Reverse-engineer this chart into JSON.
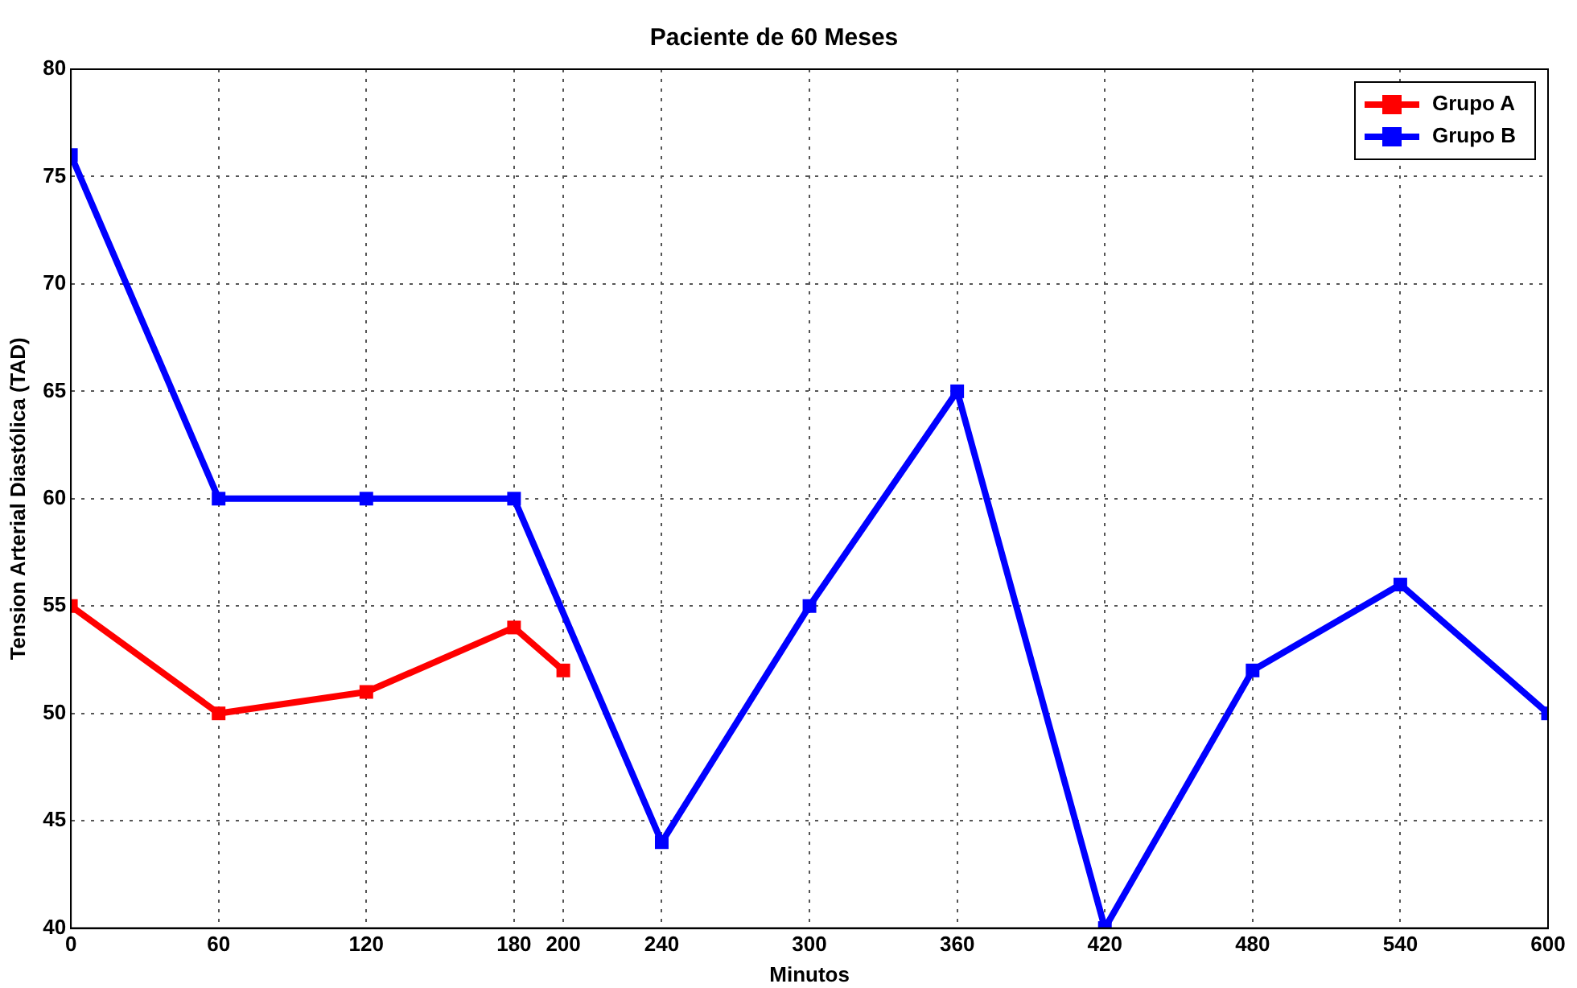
{
  "chart_data": {
    "type": "line",
    "title": "Paciente de 60 Meses",
    "xlabel": "Minutos",
    "ylabel": "Tension Arterial Diastólica (TAD)",
    "series": [
      {
        "name": "Grupo A",
        "color": "#ff0000",
        "x": [
          0,
          60,
          120,
          180,
          200
        ],
        "values": [
          55,
          50,
          51,
          54,
          52
        ]
      },
      {
        "name": "Grupo B",
        "color": "#0000ff",
        "x": [
          0,
          60,
          120,
          180,
          240,
          300,
          360,
          420,
          480,
          540,
          600
        ],
        "values": [
          76,
          60,
          60,
          60,
          44,
          55,
          65,
          40,
          52,
          56,
          50
        ]
      }
    ],
    "xlim": [
      0,
      600
    ],
    "xticks": [
      0,
      60,
      120,
      180,
      200,
      240,
      300,
      360,
      420,
      480,
      540,
      600
    ],
    "ylim": [
      40,
      80
    ],
    "yticks": [
      40,
      45,
      50,
      55,
      60,
      65,
      70,
      75,
      80
    ],
    "grid": true,
    "legend": "top right",
    "marker": "square",
    "line_style": "solid"
  }
}
